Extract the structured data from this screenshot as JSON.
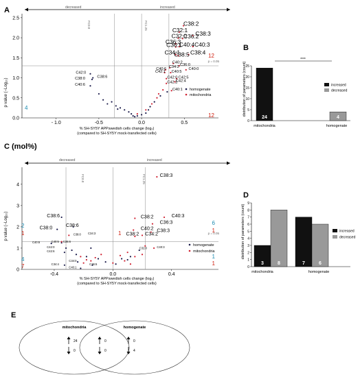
{
  "panels": {
    "a": {
      "letter": "A",
      "arrow_left_label": "decreased",
      "arrow_right_label": "increased",
      "ylabel": "p value (−Log₁₀)",
      "xlabel_1": "% SH-SY5Y APPswedish cells change (log₂)",
      "xlabel_2": "(compared to SH-SY5Y mock-transfected cells)",
      "fold_left": "FC0.8",
      "fold_right": "FC1.25",
      "p_label": "p = 0.05",
      "legend": [
        "homogenate",
        "mitochondria"
      ],
      "count_right_top": "12",
      "count_right_bottom": "12",
      "count_left_bottom": "4"
    },
    "b": {
      "letter": "B",
      "significance": "****",
      "legend": [
        "increased",
        "decreased"
      ]
    },
    "c": {
      "letter": "C (mol%)",
      "arrow_left_label": "decreased",
      "arrow_right_label": "increased",
      "ylabel": "p value (−Log₁₀)",
      "xlabel_1": "% SH-SY5Y APPswedish cells change (log₂)",
      "xlabel_2": "(compared to SH-SY5Y mock-transfected cells)",
      "fold_left": "FC0.8",
      "fold_right": "FC1.25",
      "p_label": "p = 0.05",
      "legend": [
        "homogenate",
        "mitochondria"
      ],
      "count_left_upper_blue": "2",
      "count_left_upper_red": "1",
      "count_left_lower_blue": "4",
      "count_left_lower_red": "7",
      "count_mid_red": "1",
      "count_right_upper_blue": "6",
      "count_right_upper_red": "1",
      "count_right_lower_blue": "1",
      "count_right_lower_red": "1"
    },
    "d": {
      "letter": "D",
      "legend": [
        "increased",
        "decreased"
      ]
    },
    "e": {
      "letter": "E",
      "left_title": "mitochondria",
      "right_title": "homogenate",
      "left_up": "24",
      "left_down": "0",
      "mid_up": "0",
      "mid_down": "0",
      "right_up": "0",
      "right_down": "4"
    }
  },
  "chart_data": [
    {
      "id": "A",
      "type": "scatter",
      "xlabel": "% SH-SY5Y APPswedish cells change (log₂)",
      "ylabel": "p value (−Log₁₀)",
      "xlim": [
        -1.4,
        0.9
      ],
      "ylim": [
        0,
        2.6
      ],
      "x_ticks": [
        "- 1.0",
        "-0.5",
        "0.0",
        "0.5"
      ],
      "x_tick_values": [
        -1.0,
        -0.5,
        0.0,
        0.5
      ],
      "y_ticks": [
        "0.0",
        "0.5",
        "1.0",
        "1.5",
        "2.0",
        "2.5"
      ],
      "y_tick_values": [
        0,
        0.5,
        1.0,
        1.5,
        2.0,
        2.5
      ],
      "threshold_y": 1.3,
      "fold_lines": [
        -0.32,
        0.32
      ],
      "labels": [
        {
          "t": "C38:2",
          "x": 0.49,
          "y": 2.3,
          "s": 12
        },
        {
          "t": "C32:1",
          "x": 0.36,
          "y": 2.14,
          "s": 12
        },
        {
          "t": "C38:3",
          "x": 0.63,
          "y": 2.05,
          "s": 12
        },
        {
          "t": "C32:0",
          "x": 0.35,
          "y": 1.99,
          "s": 12
        },
        {
          "t": "C36:2",
          "x": 0.49,
          "y": 1.98,
          "s": 12
        },
        {
          "t": "C36:3",
          "x": 0.28,
          "y": 1.85,
          "s": 12
        },
        {
          "t": "C40:4",
          "x": 0.44,
          "y": 1.78,
          "s": 12
        },
        {
          "t": "C40:3",
          "x": 0.62,
          "y": 1.78,
          "s": 12
        },
        {
          "t": "C36:1",
          "x": 0.29,
          "y": 1.77,
          "s": 12
        },
        {
          "t": "C34:1",
          "x": 0.27,
          "y": 1.58,
          "s": 12
        },
        {
          "t": "C38:4",
          "x": 0.57,
          "y": 1.58,
          "s": 12
        },
        {
          "t": "C38:5",
          "x": 0.38,
          "y": 1.53,
          "s": 12
        },
        {
          "t": "C40:2",
          "x": 0.36,
          "y": 1.36,
          "s": 8
        },
        {
          "t": "C36:0",
          "x": 0.45,
          "y": 1.3,
          "s": 8
        },
        {
          "t": "C34:2",
          "x": 0.32,
          "y": 1.25,
          "s": 8
        },
        {
          "t": "C40:0",
          "x": 0.55,
          "y": 1.2,
          "s": 8
        },
        {
          "t": "C40:6",
          "x": 0.17,
          "y": 1.2,
          "s": 8
        },
        {
          "t": "C40:5",
          "x": 0.35,
          "y": 1.13,
          "s": 8
        },
        {
          "t": "C42:1",
          "x": 0.16,
          "y": 1.13,
          "s": 8
        },
        {
          "t": "C42:0",
          "x": 0.3,
          "y": 0.98,
          "s": 8
        },
        {
          "t": "C42:5",
          "x": 0.43,
          "y": 0.98,
          "s": 8
        },
        {
          "t": "C42:4",
          "x": 0.4,
          "y": 0.9,
          "s": 8
        },
        {
          "t": "C42:2",
          "x": 0.3,
          "y": 0.86,
          "s": 8
        },
        {
          "t": "C40:1",
          "x": 0.36,
          "y": 0.68,
          "s": 8
        },
        {
          "t": "C42:0",
          "x": -0.77,
          "y": 1.1,
          "s": 8
        },
        {
          "t": "C38:6",
          "x": -0.52,
          "y": 1.0,
          "s": 8
        },
        {
          "t": "C38:0",
          "x": -0.78,
          "y": 0.96,
          "s": 8
        },
        {
          "t": "C40:6",
          "x": -0.78,
          "y": 0.8,
          "s": 8
        }
      ],
      "mitochondria_points": [
        [
          0.49,
          2.3
        ],
        [
          0.44,
          2.14
        ],
        [
          0.6,
          2.05
        ],
        [
          0.43,
          1.99
        ],
        [
          0.48,
          1.98
        ],
        [
          0.4,
          1.85
        ],
        [
          0.44,
          1.78
        ],
        [
          0.6,
          1.78
        ],
        [
          0.4,
          1.77
        ],
        [
          0.4,
          1.58
        ],
        [
          0.55,
          1.58
        ],
        [
          0.43,
          1.55
        ],
        [
          0.37,
          1.36
        ],
        [
          0.44,
          1.3
        ],
        [
          0.33,
          1.25
        ],
        [
          0.52,
          1.2
        ],
        [
          0.28,
          1.2
        ],
        [
          0.34,
          1.13
        ],
        [
          0.27,
          1.13
        ],
        [
          0.29,
          0.98
        ],
        [
          0.41,
          0.98
        ],
        [
          0.39,
          0.9
        ],
        [
          0.29,
          0.86
        ],
        [
          0.35,
          0.68
        ],
        [
          0.25,
          0.7
        ],
        [
          0.18,
          0.5
        ],
        [
          0.2,
          0.6
        ],
        [
          0.12,
          0.35
        ],
        [
          0.05,
          0.2
        ],
        [
          -0.05,
          0.1
        ]
      ],
      "homogenate_points": [
        [
          -0.6,
          1.1
        ],
        [
          -0.57,
          1.0
        ],
        [
          -0.58,
          0.96
        ],
        [
          -0.6,
          0.8
        ],
        [
          -0.5,
          0.6
        ],
        [
          -0.45,
          0.45
        ],
        [
          -0.4,
          0.35
        ],
        [
          -0.3,
          0.3
        ],
        [
          -0.25,
          0.25
        ],
        [
          -0.2,
          0.2
        ],
        [
          -0.15,
          0.15
        ],
        [
          -0.12,
          0.1
        ],
        [
          -0.1,
          0.05
        ],
        [
          -0.08,
          0.03
        ],
        [
          -0.05,
          0.05
        ],
        [
          0.0,
          0.08
        ],
        [
          0.05,
          0.12
        ],
        [
          0.08,
          0.2
        ],
        [
          0.1,
          0.28
        ],
        [
          0.15,
          0.4
        ],
        [
          0.22,
          0.55
        ],
        [
          0.3,
          0.65
        ],
        [
          -0.35,
          0.4
        ],
        [
          -0.28,
          0.22
        ]
      ]
    },
    {
      "id": "B",
      "type": "bar",
      "ylabel": "distribution of parameters (count)",
      "categories": [
        "mitochondria",
        "homogenate"
      ],
      "series": [
        {
          "name": "increased",
          "values": [
            24,
            0
          ]
        },
        {
          "name": "decreased",
          "values": [
            0,
            4
          ]
        }
      ],
      "bar_labels": [
        "24",
        "4"
      ],
      "ylim": [
        0,
        25
      ],
      "y_ticks": [
        0,
        5,
        10,
        15,
        20,
        25
      ]
    },
    {
      "id": "C",
      "type": "scatter",
      "xlabel": "% SH-SY5Y APPswedish cells change (log₂)",
      "ylabel": "p value (−Log₁₀)",
      "xlim": [
        -0.62,
        0.72
      ],
      "ylim": [
        0,
        4.8
      ],
      "x_ticks": [
        "-0.4",
        "0.0",
        "0.4"
      ],
      "x_tick_values": [
        -0.4,
        0.0,
        0.4
      ],
      "y_ticks": [
        "0",
        "1",
        "2",
        "3",
        "4"
      ],
      "y_tick_values": [
        0,
        1,
        2,
        3,
        4
      ],
      "threshold_y": 1.3,
      "fold_lines": [
        -0.32,
        0.22
      ],
      "labels": [
        {
          "t": "C38:3",
          "x": 0.32,
          "y": 4.35,
          "s": 10
        },
        {
          "t": "C38:6",
          "x": -0.45,
          "y": 2.45,
          "s": 10
        },
        {
          "t": "C38:2",
          "x": 0.19,
          "y": 2.4,
          "s": 10
        },
        {
          "t": "C40:3",
          "x": 0.4,
          "y": 2.45,
          "s": 10
        },
        {
          "t": "C36:3",
          "x": 0.32,
          "y": 2.14,
          "s": 10
        },
        {
          "t": "C38:6",
          "x": -0.32,
          "y": 2.0,
          "s": 10
        },
        {
          "t": "C38:0",
          "x": -0.5,
          "y": 1.88,
          "s": 10
        },
        {
          "t": "C40:2",
          "x": 0.19,
          "y": 1.85,
          "s": 10
        },
        {
          "t": "C38:3",
          "x": 0.3,
          "y": 1.75,
          "s": 10
        },
        {
          "t": "C34:2",
          "x": 0.22,
          "y": 1.6,
          "s": 10
        },
        {
          "t": "C38:2",
          "x": 0.09,
          "y": 1.6,
          "s": 10
        },
        {
          "t": "C38:0",
          "x": -0.27,
          "y": 1.6,
          "s": 6
        },
        {
          "t": "C34:3",
          "x": -0.17,
          "y": 1.65,
          "s": 6
        },
        {
          "t": "C40:6",
          "x": -0.55,
          "y": 1.22,
          "s": 6
        },
        {
          "t": "C40:5",
          "x": -0.42,
          "y": 1.25,
          "s": 6
        },
        {
          "t": "C36:6",
          "x": -0.34,
          "y": 1.25,
          "s": 6
        },
        {
          "t": "C42:0",
          "x": -0.45,
          "y": 1.0,
          "s": 6
        },
        {
          "t": "C42:6",
          "x": -0.45,
          "y": 0.8,
          "s": 6
        },
        {
          "t": "C34:0",
          "x": -0.3,
          "y": 0.35,
          "s": 6
        },
        {
          "t": "C36:6",
          "x": -0.16,
          "y": 0.2,
          "s": 6
        },
        {
          "t": "C34:4",
          "x": -0.42,
          "y": 0.2,
          "s": 6
        },
        {
          "t": "C40:1",
          "x": -0.3,
          "y": 0.05,
          "s": 6
        },
        {
          "t": "C32:0",
          "x": 0.18,
          "y": 0.95,
          "s": 6
        },
        {
          "t": "C40:3",
          "x": 0.3,
          "y": 1.0,
          "s": 6
        }
      ],
      "mitochondria_points": [
        [
          0.3,
          4.35
        ],
        [
          0.15,
          2.4
        ],
        [
          0.35,
          2.45
        ],
        [
          0.27,
          2.14
        ],
        [
          0.14,
          1.85
        ],
        [
          0.26,
          1.75
        ],
        [
          0.2,
          1.6
        ],
        [
          0.15,
          1.55
        ],
        [
          0.22,
          1.1
        ],
        [
          0.28,
          1.0
        ],
        [
          0.1,
          0.8
        ],
        [
          0.05,
          0.65
        ],
        [
          0.15,
          0.6
        ],
        [
          0.2,
          0.7
        ],
        [
          -0.08,
          0.7
        ],
        [
          -0.12,
          0.55
        ],
        [
          -0.18,
          0.45
        ],
        [
          -0.2,
          0.3
        ],
        [
          -0.3,
          1.6
        ],
        [
          -0.35,
          1.3
        ],
        [
          -0.22,
          0.6
        ],
        [
          -0.15,
          0.4
        ],
        [
          0.0,
          0.3
        ],
        [
          0.08,
          0.4
        ],
        [
          0.12,
          0.25
        ]
      ],
      "homogenate_points": [
        [
          -0.35,
          2.45
        ],
        [
          -0.27,
          2.0
        ],
        [
          -0.38,
          1.88
        ],
        [
          -0.42,
          1.22
        ],
        [
          -0.35,
          1.25
        ],
        [
          -0.32,
          1.0
        ],
        [
          -0.33,
          0.8
        ],
        [
          -0.24,
          0.35
        ],
        [
          -0.14,
          0.2
        ],
        [
          -0.33,
          0.2
        ],
        [
          -0.22,
          0.05
        ],
        [
          -0.28,
          0.9
        ],
        [
          -0.25,
          0.7
        ],
        [
          -0.18,
          0.6
        ],
        [
          -0.1,
          0.5
        ],
        [
          -0.05,
          0.35
        ],
        [
          0.02,
          0.25
        ],
        [
          0.06,
          0.5
        ],
        [
          0.1,
          0.45
        ],
        [
          0.12,
          0.6
        ],
        [
          0.18,
          0.9
        ],
        [
          -0.15,
          1.0
        ]
      ]
    },
    {
      "id": "D",
      "type": "bar",
      "ylabel": "distribution of parameters (count)",
      "categories": [
        "mitochondria",
        "homogenate"
      ],
      "series": [
        {
          "name": "increased",
          "values": [
            3,
            7
          ]
        },
        {
          "name": "decreased",
          "values": [
            8,
            6
          ]
        }
      ],
      "bar_labels": [
        "3",
        "8",
        "7",
        "6"
      ],
      "ylim": [
        0,
        9
      ],
      "y_ticks": [
        0,
        1,
        2,
        3,
        4,
        5,
        6,
        7,
        8,
        9
      ]
    }
  ]
}
